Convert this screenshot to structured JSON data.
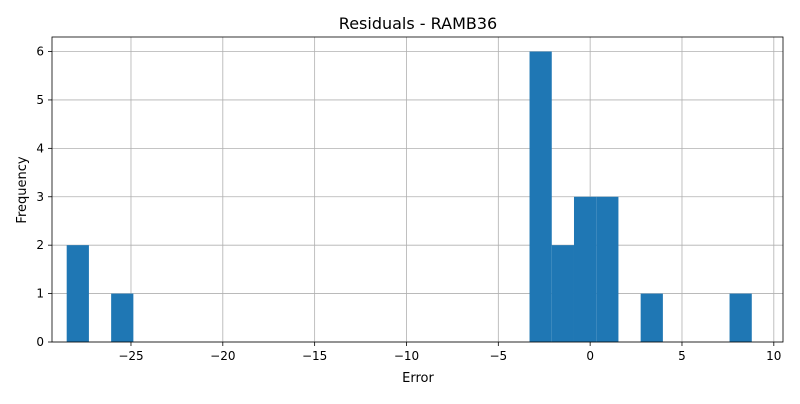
{
  "chart_data": {
    "type": "bar",
    "title": "Residuals - RAMB36",
    "xlabel": "Error",
    "ylabel": "Frequency",
    "xlim": [
      -29.3,
      10.5
    ],
    "ylim": [
      0,
      6.3
    ],
    "grid": true,
    "bar_color": "#1f77b4",
    "bin_width": 1.21,
    "x_ticks": [
      -25,
      -20,
      -15,
      -10,
      -5,
      0,
      5,
      10
    ],
    "x_tick_labels": [
      "−25",
      "−20",
      "−15",
      "−10",
      "−5",
      "0",
      "5",
      "10"
    ],
    "y_ticks": [
      0,
      1,
      2,
      3,
      4,
      5,
      6
    ],
    "y_tick_labels": [
      "0",
      "1",
      "2",
      "3",
      "4",
      "5",
      "6"
    ],
    "bins": [
      {
        "start": -28.5,
        "count": 2
      },
      {
        "start": -26.08,
        "count": 1
      },
      {
        "start": -3.3,
        "count": 6
      },
      {
        "start": -2.09,
        "count": 2
      },
      {
        "start": -0.88,
        "count": 3
      },
      {
        "start": 0.33,
        "count": 3
      },
      {
        "start": 2.75,
        "count": 1
      },
      {
        "start": 7.59,
        "count": 1
      }
    ]
  }
}
